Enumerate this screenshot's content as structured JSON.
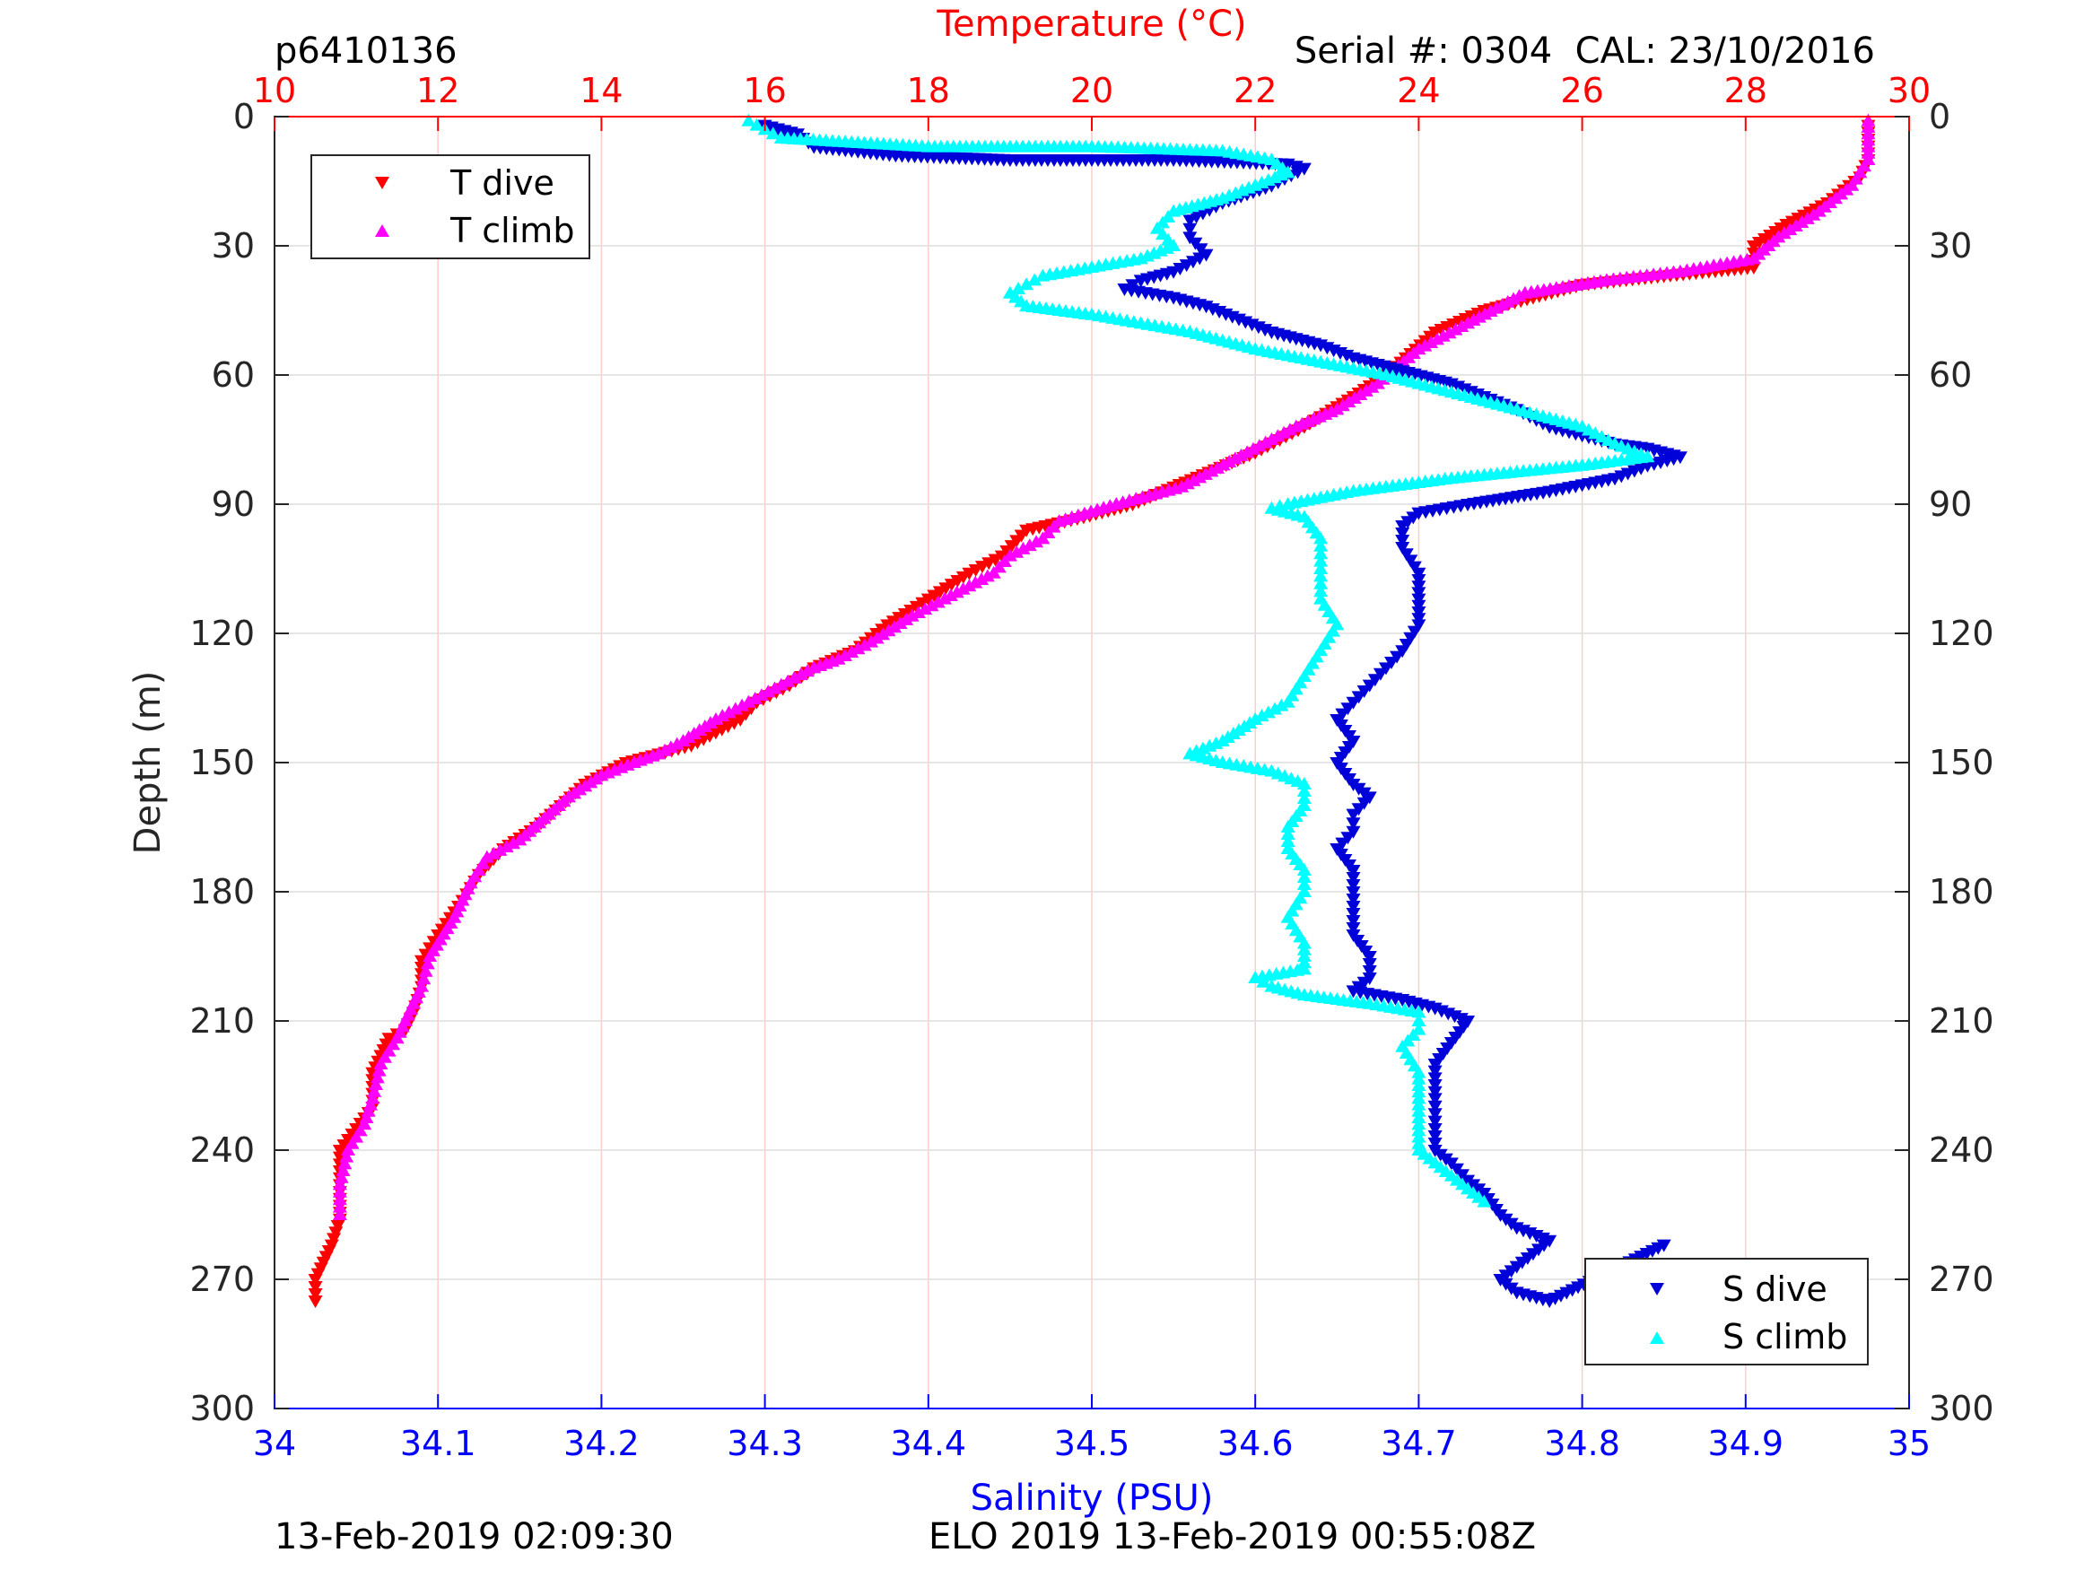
{
  "header": {
    "profile_id": "p6410136",
    "serial_cal": "Serial #: 0304  CAL: 23/10/2016"
  },
  "footer": {
    "left": "13-Feb-2019 02:09:30",
    "right": "ELO 2019 13-Feb-2019 00:55:08Z"
  },
  "chart_data": {
    "type": "scatter",
    "title": "",
    "x_top": {
      "label": "Temperature (°C)",
      "range": [
        10,
        30
      ],
      "ticks": [
        10,
        12,
        14,
        16,
        18,
        20,
        22,
        24,
        26,
        28,
        30
      ],
      "color": "#ff0000"
    },
    "x_bottom": {
      "label": "Salinity (PSU)",
      "range": [
        34,
        35
      ],
      "ticks": [
        "34",
        "34.1",
        "34.2",
        "34.3",
        "34.4",
        "34.5",
        "34.6",
        "34.7",
        "34.8",
        "34.9",
        "35"
      ],
      "color": "#0000ff"
    },
    "y": {
      "label": "Depth (m)",
      "range": [
        0,
        300
      ],
      "reversed": true,
      "ticks": [
        0,
        30,
        60,
        90,
        120,
        150,
        180,
        210,
        240,
        270,
        300
      ]
    },
    "grid": true,
    "legends": [
      {
        "placement": "top-left",
        "entries": [
          "T dive",
          "T climb"
        ]
      },
      {
        "placement": "bottom-right",
        "entries": [
          "S dive",
          "S climb"
        ]
      }
    ],
    "series": [
      {
        "name": "T dive",
        "axis": "temperature",
        "marker": "triangle-down",
        "color": "#ff0000",
        "points": [
          [
            29.5,
            2
          ],
          [
            29.5,
            10
          ],
          [
            29.4,
            14
          ],
          [
            29.0,
            20
          ],
          [
            28.5,
            25
          ],
          [
            28.1,
            30
          ],
          [
            28.1,
            35
          ],
          [
            27.0,
            37
          ],
          [
            26.0,
            39
          ],
          [
            24.8,
            45
          ],
          [
            24.2,
            50
          ],
          [
            23.9,
            55
          ],
          [
            23.6,
            60
          ],
          [
            23.2,
            65
          ],
          [
            22.6,
            72
          ],
          [
            22.0,
            78
          ],
          [
            21.5,
            82
          ],
          [
            21.0,
            86
          ],
          [
            20.5,
            90
          ],
          [
            19.9,
            93
          ],
          [
            19.2,
            96
          ],
          [
            18.9,
            102
          ],
          [
            18.5,
            106
          ],
          [
            18.0,
            112
          ],
          [
            17.5,
            118
          ],
          [
            17.1,
            124
          ],
          [
            16.6,
            128
          ],
          [
            16.3,
            132
          ],
          [
            15.9,
            136
          ],
          [
            15.7,
            140
          ],
          [
            15.1,
            146
          ],
          [
            14.3,
            150
          ],
          [
            13.8,
            155
          ],
          [
            13.5,
            160
          ],
          [
            13.2,
            165
          ],
          [
            12.8,
            170
          ],
          [
            12.5,
            176
          ],
          [
            12.3,
            182
          ],
          [
            12.0,
            190
          ],
          [
            11.8,
            196
          ],
          [
            11.8,
            202
          ],
          [
            11.7,
            208
          ],
          [
            11.6,
            212
          ],
          [
            11.4,
            214
          ],
          [
            11.2,
            222
          ],
          [
            11.2,
            230
          ],
          [
            11.0,
            235
          ],
          [
            10.8,
            240
          ],
          [
            10.8,
            248
          ],
          [
            10.8,
            256
          ],
          [
            10.7,
            262
          ],
          [
            10.6,
            266
          ],
          [
            10.5,
            270
          ],
          [
            10.5,
            275
          ]
        ]
      },
      {
        "name": "T climb",
        "axis": "temperature",
        "marker": "triangle-up",
        "color": "#ff00ff",
        "points": [
          [
            29.5,
            1
          ],
          [
            29.5,
            10
          ],
          [
            29.3,
            16
          ],
          [
            28.9,
            22
          ],
          [
            28.4,
            28
          ],
          [
            28.1,
            33
          ],
          [
            27.2,
            36
          ],
          [
            26.3,
            38
          ],
          [
            25.3,
            41
          ],
          [
            24.6,
            48
          ],
          [
            24.0,
            54
          ],
          [
            23.5,
            62
          ],
          [
            23.0,
            68
          ],
          [
            22.5,
            72
          ],
          [
            21.9,
            78
          ],
          [
            21.1,
            86
          ],
          [
            20.3,
            90
          ],
          [
            19.6,
            94
          ],
          [
            19.4,
            98
          ],
          [
            19.0,
            102
          ],
          [
            18.8,
            106
          ],
          [
            18.5,
            109
          ],
          [
            18.2,
            112
          ],
          [
            17.8,
            116
          ],
          [
            17.3,
            122
          ],
          [
            16.9,
            126
          ],
          [
            16.6,
            128
          ],
          [
            16.2,
            132
          ],
          [
            15.8,
            136
          ],
          [
            15.4,
            140
          ],
          [
            15.0,
            145
          ],
          [
            14.7,
            148
          ],
          [
            14.4,
            150
          ],
          [
            14.0,
            153
          ],
          [
            13.6,
            158
          ],
          [
            13.3,
            163
          ],
          [
            13.0,
            168
          ],
          [
            12.6,
            172
          ],
          [
            12.4,
            178
          ],
          [
            12.2,
            186
          ],
          [
            11.9,
            195
          ],
          [
            11.8,
            202
          ],
          [
            11.6,
            210
          ],
          [
            11.5,
            214
          ],
          [
            11.3,
            220
          ],
          [
            11.2,
            228
          ],
          [
            11.1,
            234
          ],
          [
            10.9,
            240
          ],
          [
            10.8,
            248
          ],
          [
            10.8,
            255
          ]
        ]
      },
      {
        "name": "S dive",
        "axis": "salinity",
        "marker": "triangle-down",
        "color": "#0000d8",
        "points": [
          [
            34.3,
            2
          ],
          [
            34.32,
            4
          ],
          [
            34.33,
            7
          ],
          [
            34.38,
            9
          ],
          [
            34.45,
            10
          ],
          [
            34.55,
            10
          ],
          [
            34.62,
            11
          ],
          [
            34.63,
            12
          ],
          [
            34.61,
            16
          ],
          [
            34.58,
            20
          ],
          [
            34.56,
            24
          ],
          [
            34.56,
            28
          ],
          [
            34.57,
            32
          ],
          [
            34.55,
            36
          ],
          [
            34.53,
            38
          ],
          [
            34.52,
            40
          ],
          [
            34.55,
            42
          ],
          [
            34.57,
            44
          ],
          [
            34.59,
            47
          ],
          [
            34.61,
            50
          ],
          [
            34.64,
            53
          ],
          [
            34.66,
            56
          ],
          [
            34.69,
            59
          ],
          [
            34.72,
            62
          ],
          [
            34.74,
            65
          ],
          [
            34.76,
            68
          ],
          [
            34.78,
            72
          ],
          [
            34.8,
            74
          ],
          [
            34.82,
            76
          ],
          [
            34.84,
            77
          ],
          [
            34.86,
            79
          ],
          [
            34.84,
            81
          ],
          [
            34.82,
            84
          ],
          [
            34.78,
            87
          ],
          [
            34.73,
            90
          ],
          [
            34.7,
            92
          ],
          [
            34.69,
            95
          ],
          [
            34.69,
            100
          ],
          [
            34.7,
            106
          ],
          [
            34.7,
            112
          ],
          [
            34.7,
            118
          ],
          [
            34.69,
            124
          ],
          [
            34.68,
            128
          ],
          [
            34.67,
            132
          ],
          [
            34.66,
            136
          ],
          [
            34.65,
            140
          ],
          [
            34.66,
            145
          ],
          [
            34.65,
            150
          ],
          [
            34.66,
            155
          ],
          [
            34.67,
            158
          ],
          [
            34.66,
            162
          ],
          [
            34.66,
            166
          ],
          [
            34.65,
            170
          ],
          [
            34.66,
            175
          ],
          [
            34.66,
            180
          ],
          [
            34.66,
            185
          ],
          [
            34.66,
            190
          ],
          [
            34.67,
            195
          ],
          [
            34.67,
            200
          ],
          [
            34.66,
            203
          ],
          [
            34.69,
            205
          ],
          [
            34.71,
            207
          ],
          [
            34.73,
            210
          ],
          [
            34.72,
            215
          ],
          [
            34.71,
            220
          ],
          [
            34.71,
            228
          ],
          [
            34.71,
            235
          ],
          [
            34.71,
            240
          ],
          [
            34.72,
            243
          ],
          [
            34.73,
            247
          ],
          [
            34.74,
            250
          ],
          [
            34.75,
            255
          ],
          [
            34.76,
            258
          ],
          [
            34.78,
            261
          ],
          [
            34.77,
            264
          ],
          [
            34.76,
            267
          ],
          [
            34.75,
            270
          ],
          [
            34.76,
            273
          ],
          [
            34.78,
            275
          ],
          [
            34.85,
            262
          ]
        ]
      },
      {
        "name": "S climb",
        "axis": "salinity",
        "marker": "triangle-up",
        "color": "#00ffff",
        "points": [
          [
            34.29,
            1
          ],
          [
            34.3,
            3
          ],
          [
            34.31,
            5
          ],
          [
            34.4,
            7
          ],
          [
            34.5,
            7
          ],
          [
            34.58,
            8
          ],
          [
            34.61,
            10
          ],
          [
            34.62,
            13
          ],
          [
            34.6,
            16
          ],
          [
            34.58,
            19
          ],
          [
            34.55,
            22
          ],
          [
            34.54,
            26
          ],
          [
            34.55,
            30
          ],
          [
            34.53,
            33
          ],
          [
            34.5,
            35
          ],
          [
            34.47,
            37
          ],
          [
            34.46,
            39
          ],
          [
            34.45,
            41
          ],
          [
            34.46,
            44
          ],
          [
            34.5,
            46
          ],
          [
            34.53,
            48
          ],
          [
            34.56,
            50
          ],
          [
            34.6,
            54
          ],
          [
            34.64,
            57
          ],
          [
            34.68,
            60
          ],
          [
            34.72,
            64
          ],
          [
            34.76,
            68
          ],
          [
            34.8,
            72
          ],
          [
            34.82,
            76
          ],
          [
            34.84,
            79
          ],
          [
            34.8,
            81
          ],
          [
            34.72,
            84
          ],
          [
            34.66,
            87
          ],
          [
            34.62,
            90
          ],
          [
            34.61,
            91
          ],
          [
            34.63,
            93
          ],
          [
            34.64,
            98
          ],
          [
            34.64,
            105
          ],
          [
            34.64,
            112
          ],
          [
            34.65,
            118
          ],
          [
            34.64,
            124
          ],
          [
            34.63,
            130
          ],
          [
            34.62,
            136
          ],
          [
            34.6,
            140
          ],
          [
            34.58,
            145
          ],
          [
            34.56,
            148
          ],
          [
            34.58,
            150
          ],
          [
            34.61,
            152
          ],
          [
            34.63,
            155
          ],
          [
            34.63,
            160
          ],
          [
            34.62,
            165
          ],
          [
            34.62,
            170
          ],
          [
            34.63,
            175
          ],
          [
            34.63,
            180
          ],
          [
            34.62,
            186
          ],
          [
            34.63,
            192
          ],
          [
            34.63,
            198
          ],
          [
            34.6,
            200
          ],
          [
            34.61,
            202
          ],
          [
            34.63,
            204
          ],
          [
            34.67,
            206
          ],
          [
            34.7,
            208
          ],
          [
            34.7,
            212
          ],
          [
            34.69,
            216
          ],
          [
            34.7,
            222
          ],
          [
            34.7,
            228
          ],
          [
            34.7,
            234
          ],
          [
            34.7,
            240
          ],
          [
            34.71,
            243
          ],
          [
            34.72,
            246
          ],
          [
            34.73,
            249
          ],
          [
            34.74,
            252
          ]
        ]
      }
    ]
  }
}
